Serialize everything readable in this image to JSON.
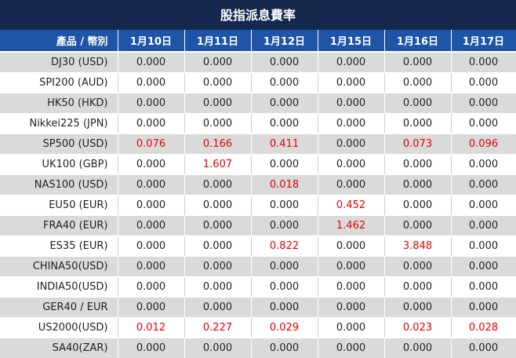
{
  "header": {
    "title": "股指派息費率"
  },
  "table": {
    "columns": [
      "產品 / 幣別",
      "1月10日",
      "1月11日",
      "1月12日",
      "1月15日",
      "1月16日",
      "1月17日"
    ],
    "rows": [
      [
        "DJ30 (USD)",
        "0.000",
        "0.000",
        "0.000",
        "0.000",
        "0.000",
        "0.000"
      ],
      [
        "SPI200 (AUD)",
        "0.000",
        "0.000",
        "0.000",
        "0.000",
        "0.000",
        "0.000"
      ],
      [
        "HK50 (HKD)",
        "0.000",
        "0.000",
        "0.000",
        "0.000",
        "0.000",
        "0.000"
      ],
      [
        "Nikkei225 (JPN)",
        "0.000",
        "0.000",
        "0.000",
        "0.000",
        "0.000",
        "0.000"
      ],
      [
        "SP500 (USD)",
        "0.076",
        "0.166",
        "0.411",
        "0.000",
        "0.073",
        "0.096"
      ],
      [
        "UK100 (GBP)",
        "0.000",
        "1.607",
        "0.000",
        "0.000",
        "0.000",
        "0.000"
      ],
      [
        "NAS100 (USD)",
        "0.000",
        "0.000",
        "0.018",
        "0.000",
        "0.000",
        "0.000"
      ],
      [
        "EU50 (EUR)",
        "0.000",
        "0.000",
        "0.000",
        "0.452",
        "0.000",
        "0.000"
      ],
      [
        "FRA40 (EUR)",
        "0.000",
        "0.000",
        "0.000",
        "1.462",
        "0.000",
        "0.000"
      ],
      [
        "ES35 (EUR)",
        "0.000",
        "0.000",
        "0.822",
        "0.000",
        "3.848",
        "0.000"
      ],
      [
        "CHINA50(USD)",
        "0.000",
        "0.000",
        "0.000",
        "0.000",
        "0.000",
        "0.000"
      ],
      [
        "INDIA50(USD)",
        "0.000",
        "0.000",
        "0.000",
        "0.000",
        "0.000",
        "0.000"
      ],
      [
        "GER40 / EUR",
        "0.000",
        "0.000",
        "0.000",
        "0.000",
        "0.000",
        "0.000"
      ],
      [
        "US2000(USD)",
        "0.012",
        "0.227",
        "0.029",
        "0.000",
        "0.023",
        "0.028"
      ],
      [
        "SA40(ZAR)",
        "0.000",
        "0.000",
        "0.000",
        "0.000",
        "0.000",
        "0.000"
      ]
    ]
  }
}
